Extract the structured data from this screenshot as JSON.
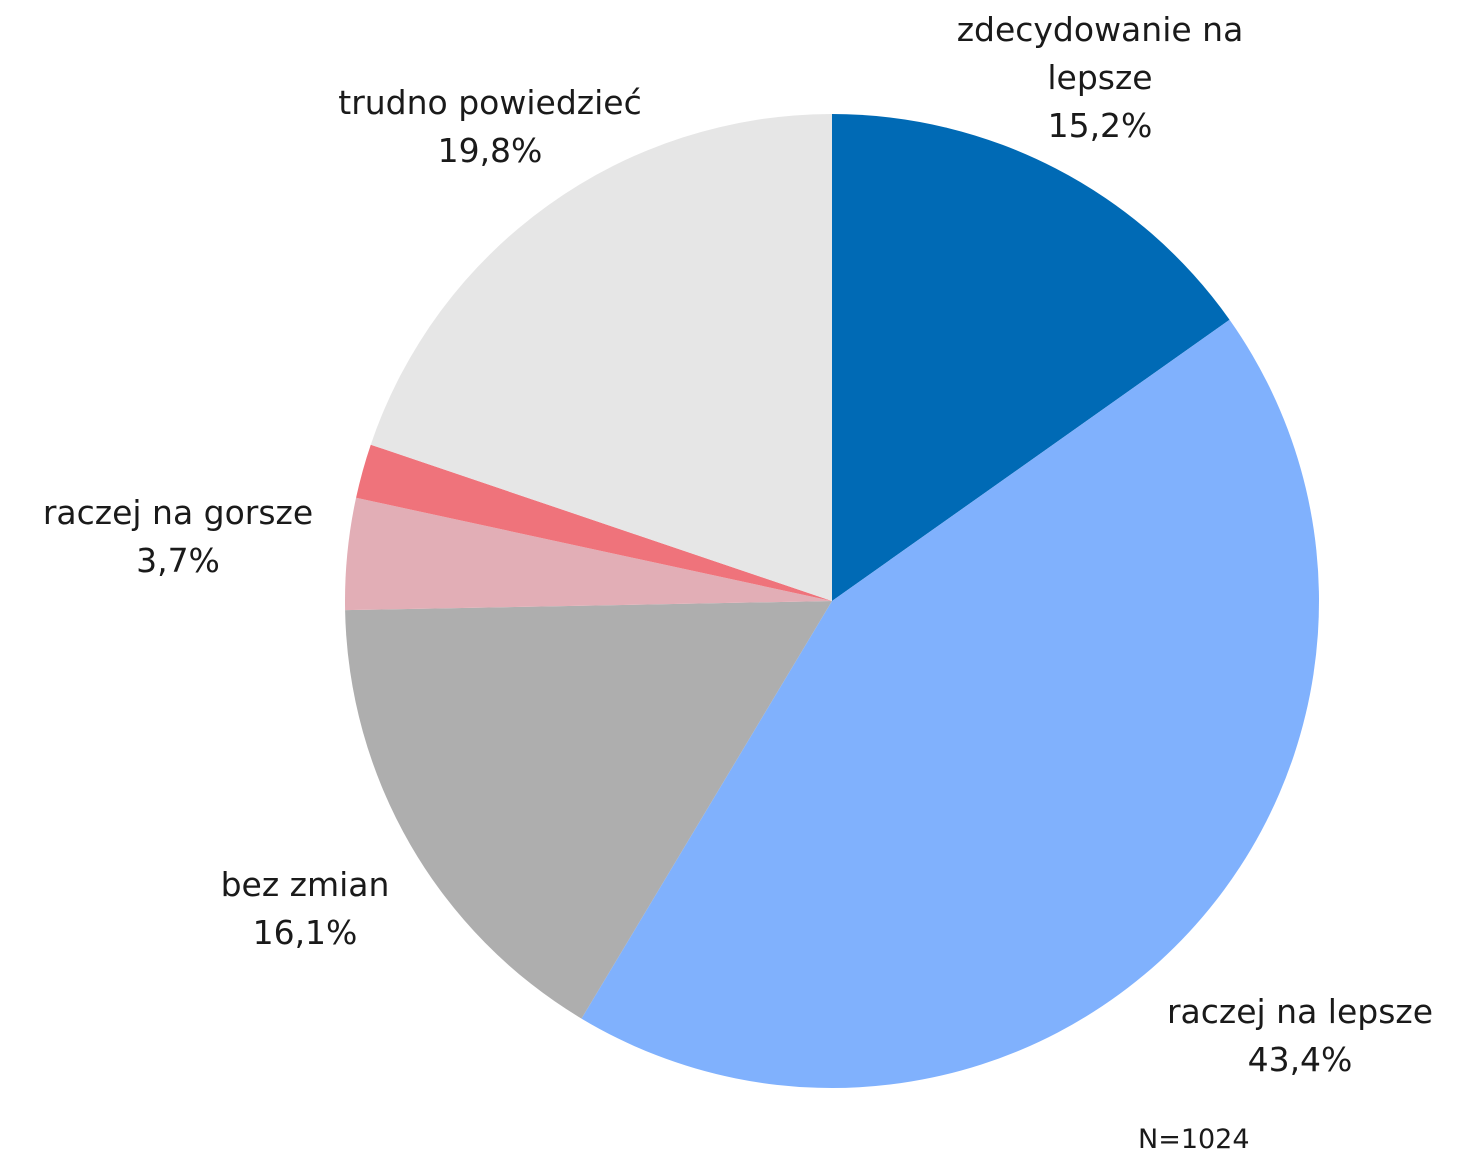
{
  "chart_data": {
    "type": "pie",
    "categories": [
      "zdecydowanie na lepsze",
      "raczej na lepsze",
      "bez zmian",
      "raczej na gorsze",
      null,
      "trudno powiedzieć"
    ],
    "values": [
      15.2,
      43.4,
      16.1,
      3.7,
      1.8,
      19.8
    ],
    "value_labels": [
      "15,2%",
      "43,4%",
      "16,1%",
      "3,7%",
      null,
      "19,8%"
    ],
    "colors": [
      "#006ab5",
      "#80b1fd",
      "#aeaeae",
      "#e2aeb6",
      "#ef737b",
      "#e6e6e6"
    ],
    "note": "N=1024"
  }
}
